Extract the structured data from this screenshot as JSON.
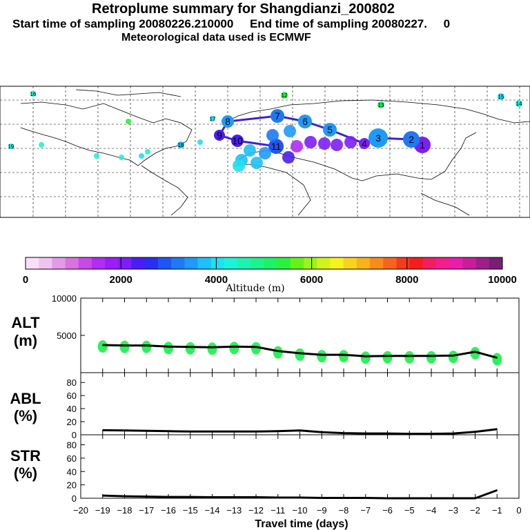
{
  "header": {
    "title": "Retroplume summary for Shangdianzi_200802",
    "start_label": "Start time of sampling 20080226.210000",
    "end_label": "End time of sampling 20080227.",
    "end_suffix": "0",
    "met_line": "Meteorological data used is ECMWF"
  },
  "colorbar": {
    "ticks": [
      "0",
      "2000",
      "4000",
      "6000",
      "8000",
      "10000"
    ],
    "label": "Altitude (m)",
    "colors": [
      "#f7e0f7",
      "#efc3ef",
      "#e59ae8",
      "#d873e0",
      "#c84ae6",
      "#b22cf2",
      "#9b1ef7",
      "#7d1ef7",
      "#4a1ef0",
      "#2a2ef0",
      "#1e56f2",
      "#1e7af2",
      "#1e9af7",
      "#1ec0f7",
      "#1ee0f2",
      "#1ef2d8",
      "#1ef2b0",
      "#1ef28a",
      "#1ef264",
      "#2af23c",
      "#64f21e",
      "#9cf21e",
      "#d2f21e",
      "#f7f21e",
      "#f7d21e",
      "#f7b21e",
      "#f78c1e",
      "#f7641e",
      "#f23c1e",
      "#f21e1e",
      "#f21e64",
      "#f21e8c",
      "#e61eac",
      "#c81e9b",
      "#a01e8a",
      "#7a1e78"
    ]
  },
  "map": {
    "labels": [
      "1",
      "2",
      "3",
      "4",
      "5",
      "6",
      "7",
      "8",
      "9",
      "10",
      "11",
      "12",
      "13",
      "14",
      "15",
      "16",
      "17",
      "18",
      "19"
    ]
  },
  "panels": {
    "alt": {
      "label_line1": "ALT",
      "label_line2": "(m)",
      "yticks": [
        "10000",
        "5000"
      ]
    },
    "abl": {
      "label_line1": "ABL",
      "label_line2": "(%)",
      "yticks": [
        "80",
        "60",
        "40",
        "20",
        "0"
      ]
    },
    "str": {
      "label_line1": "STR",
      "label_line2": "(%)",
      "yticks": [
        "80",
        "60",
        "40",
        "20",
        "0"
      ]
    }
  },
  "xaxis": {
    "label": "Travel time (days)",
    "ticks": [
      "−20",
      "−19",
      "−18",
      "−17",
      "−16",
      "−15",
      "−14",
      "−13",
      "−12",
      "−11",
      "−10",
      "−9",
      "−8",
      "−7",
      "−6",
      "−5",
      "−4",
      "−3",
      "−2",
      "−1",
      "0"
    ]
  },
  "chart_data": [
    {
      "type": "line",
      "title": "ALT",
      "ylabel": "ALT (m)",
      "xlabel": "Travel time (days)",
      "x": [
        -19,
        -18,
        -17,
        -16,
        -15,
        -14,
        -13,
        -12,
        -11,
        -10,
        -9,
        -8,
        -7,
        -6,
        -5,
        -4,
        -3,
        -2,
        -1
      ],
      "values": [
        3700,
        3650,
        3650,
        3500,
        3450,
        3400,
        3500,
        3450,
        2900,
        2600,
        2400,
        2400,
        2200,
        2250,
        2250,
        2250,
        2300,
        2800,
        2000
      ],
      "ylim": [
        0,
        10000
      ]
    },
    {
      "type": "line",
      "title": "ABL",
      "ylabel": "ABL (%)",
      "xlabel": "Travel time (days)",
      "x": [
        -19,
        -18,
        -17,
        -16,
        -15,
        -14,
        -13,
        -12,
        -11,
        -10,
        -9,
        -8,
        -7,
        -6,
        -5,
        -4,
        -3,
        -2,
        -1
      ],
      "values": [
        7,
        6.5,
        6,
        5.5,
        5,
        5,
        5,
        5,
        5.5,
        6.5,
        4,
        2.5,
        2,
        2,
        1.5,
        1.5,
        2,
        4.5,
        8.5
      ],
      "ylim": [
        0,
        95
      ]
    },
    {
      "type": "line",
      "title": "STR",
      "ylabel": "STR (%)",
      "xlabel": "Travel time (days)",
      "x": [
        -19,
        -18,
        -17,
        -16,
        -15,
        -14,
        -13,
        -12,
        -11,
        -10,
        -9,
        -8,
        -7,
        -6,
        -5,
        -4,
        -3,
        -2,
        -1
      ],
      "values": [
        4,
        3,
        2.5,
        2,
        2,
        1.5,
        1.5,
        1.5,
        1,
        1,
        0.5,
        0.5,
        0.5,
        0,
        0,
        0,
        0,
        0,
        12
      ],
      "ylim": [
        0,
        95
      ]
    }
  ]
}
